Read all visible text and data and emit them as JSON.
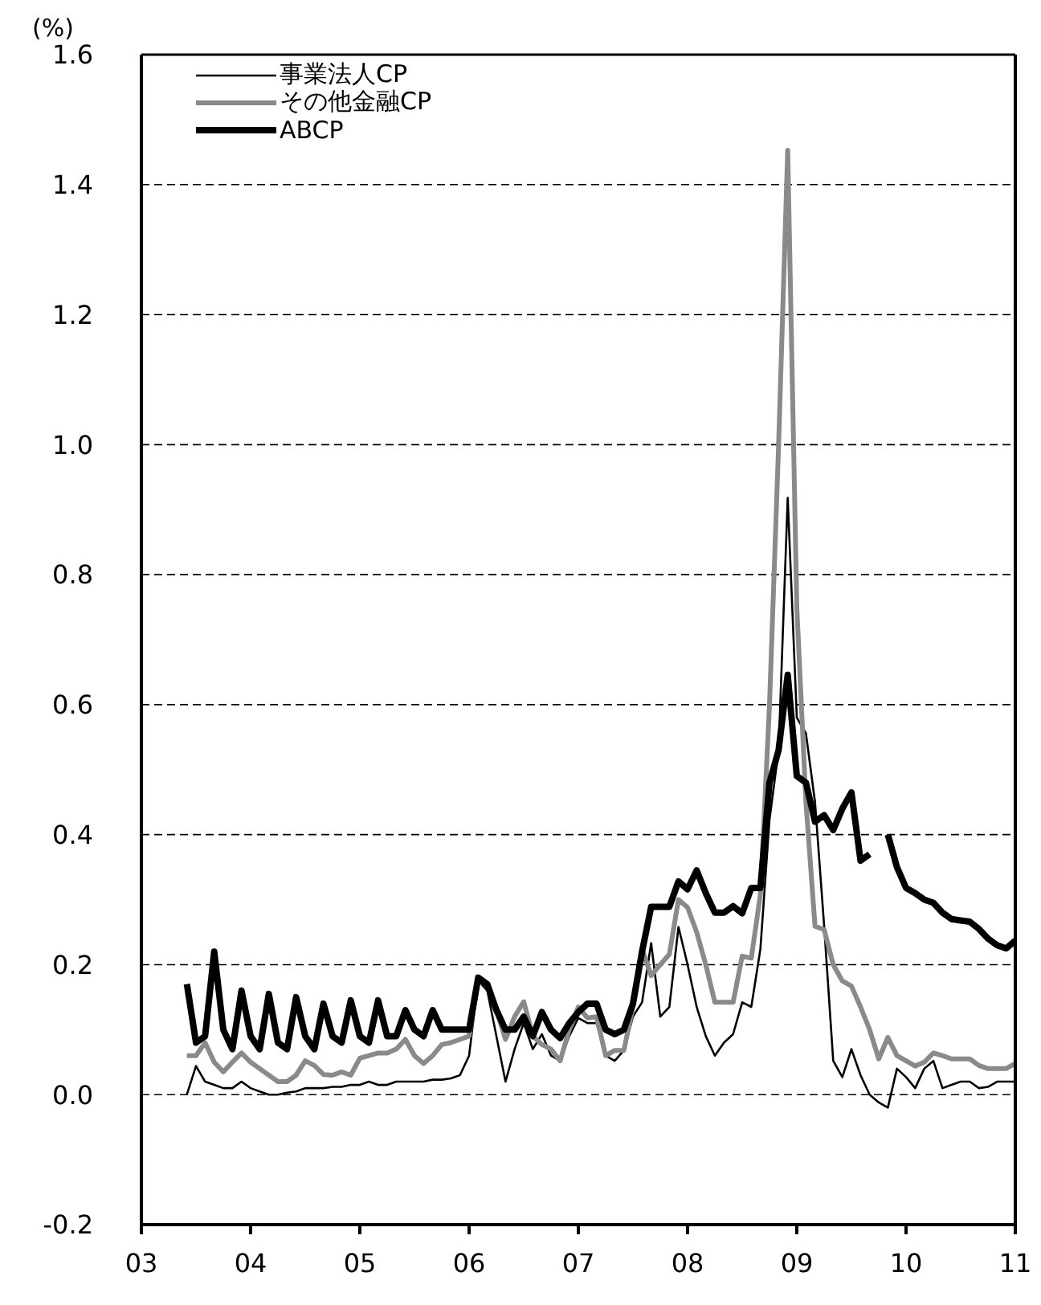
{
  "chart_data": {
    "type": "line",
    "ylabel": "(%)",
    "x": [
      "2003-06",
      "2003-07",
      "2003-08",
      "2003-09",
      "2003-10",
      "2003-11",
      "2003-12",
      "2004-01",
      "2004-02",
      "2004-03",
      "2004-04",
      "2004-05",
      "2004-06",
      "2004-07",
      "2004-08",
      "2004-09",
      "2004-10",
      "2004-11",
      "2004-12",
      "2005-01",
      "2005-02",
      "2005-03",
      "2005-04",
      "2005-05",
      "2005-06",
      "2005-07",
      "2005-08",
      "2005-09",
      "2005-10",
      "2005-11",
      "2005-12",
      "2006-01",
      "2006-02",
      "2006-03",
      "2006-04",
      "2006-05",
      "2006-06",
      "2006-07",
      "2006-08",
      "2006-09",
      "2006-10",
      "2006-11",
      "2006-12",
      "2007-01",
      "2007-02",
      "2007-03",
      "2007-04",
      "2007-05",
      "2007-06",
      "2007-07",
      "2007-08",
      "2007-09",
      "2007-10",
      "2007-11",
      "2007-12",
      "2008-01",
      "2008-02",
      "2008-03",
      "2008-04",
      "2008-05",
      "2008-06",
      "2008-07",
      "2008-08",
      "2008-09",
      "2008-10",
      "2008-11",
      "2008-12",
      "2009-01",
      "2009-02",
      "2009-03",
      "2009-04",
      "2009-05",
      "2009-06",
      "2009-07",
      "2009-08",
      "2009-09",
      "2009-10",
      "2009-11",
      "2009-12",
      "2010-01",
      "2010-02",
      "2010-03",
      "2010-04",
      "2010-05",
      "2010-06",
      "2010-07",
      "2010-08",
      "2010-09",
      "2010-10",
      "2010-11",
      "2010-12",
      "2011-01"
    ],
    "series": [
      {
        "name": "事業法人CP",
        "color": "#000000",
        "values": [
          0.0,
          0.044,
          0.02,
          0.015,
          0.01,
          0.01,
          0.02,
          0.01,
          0.005,
          0.0,
          0.0,
          0.003,
          0.005,
          0.01,
          0.01,
          0.01,
          0.012,
          0.012,
          0.015,
          0.015,
          0.02,
          0.015,
          0.015,
          0.02,
          0.02,
          0.02,
          0.02,
          0.023,
          0.023,
          0.025,
          0.03,
          0.06,
          0.176,
          0.16,
          0.09,
          0.02,
          0.07,
          0.11,
          0.07,
          0.093,
          0.06,
          0.052,
          0.09,
          0.118,
          0.11,
          0.11,
          0.06,
          0.052,
          0.068,
          0.12,
          0.142,
          0.233,
          0.12,
          0.135,
          0.258,
          0.2,
          0.135,
          0.09,
          0.06,
          0.08,
          0.093,
          0.142,
          0.135,
          0.224,
          0.423,
          0.53,
          0.918,
          0.58,
          0.556,
          0.45,
          0.26,
          0.052,
          0.027,
          0.07,
          0.03,
          0.0,
          -0.012,
          -0.02,
          0.04,
          0.027,
          0.01,
          0.04,
          0.052,
          0.01,
          0.015,
          0.02,
          0.02,
          0.01,
          0.012,
          0.02,
          0.02,
          0.02
        ]
      },
      {
        "name": "その他金融CP",
        "color": "#8a8a8a",
        "values": [
          0.06,
          0.06,
          0.08,
          0.05,
          0.035,
          0.05,
          0.064,
          0.05,
          0.04,
          0.03,
          0.02,
          0.02,
          0.03,
          0.052,
          0.045,
          0.031,
          0.03,
          0.035,
          0.03,
          0.056,
          0.06,
          0.064,
          0.064,
          0.07,
          0.085,
          0.06,
          0.048,
          0.06,
          0.077,
          0.08,
          0.085,
          0.09,
          0.176,
          0.17,
          0.13,
          0.085,
          0.12,
          0.143,
          0.09,
          0.077,
          0.07,
          0.052,
          0.1,
          0.135,
          0.118,
          0.12,
          0.06,
          0.068,
          0.068,
          0.135,
          0.224,
          0.183,
          0.2,
          0.216,
          0.3,
          0.288,
          0.25,
          0.2,
          0.142,
          0.142,
          0.142,
          0.213,
          0.21,
          0.308,
          0.6,
          1.0,
          1.453,
          0.75,
          0.45,
          0.259,
          0.254,
          0.2,
          0.175,
          0.167,
          0.135,
          0.1,
          0.055,
          0.088,
          0.06,
          0.052,
          0.044,
          0.05,
          0.064,
          0.06,
          0.055,
          0.055,
          0.055,
          0.045,
          0.04,
          0.04,
          0.04,
          0.048
        ]
      },
      {
        "name": "ABCP",
        "color": "#000000",
        "values": [
          0.17,
          0.08,
          0.09,
          0.22,
          0.1,
          0.07,
          0.16,
          0.09,
          0.07,
          0.155,
          0.08,
          0.07,
          0.15,
          0.09,
          0.07,
          0.14,
          0.09,
          0.08,
          0.145,
          0.09,
          0.08,
          0.145,
          0.09,
          0.09,
          0.13,
          0.1,
          0.09,
          0.13,
          0.1,
          0.1,
          0.1,
          0.1,
          0.18,
          0.17,
          0.13,
          0.1,
          0.1,
          0.12,
          0.09,
          0.127,
          0.1,
          0.087,
          0.11,
          0.127,
          0.14,
          0.14,
          0.1,
          0.093,
          0.1,
          0.14,
          0.22,
          0.289,
          0.289,
          0.289,
          0.328,
          0.316,
          0.345,
          0.31,
          0.28,
          0.28,
          0.29,
          0.279,
          0.318,
          0.318,
          0.48,
          0.53,
          0.646,
          0.49,
          0.48,
          0.42,
          0.43,
          0.407,
          0.44,
          0.465,
          0.36,
          0.37,
          null,
          0.4,
          0.35,
          0.318,
          0.31,
          0.3,
          0.295,
          0.28,
          0.27,
          0.268,
          0.266,
          0.255,
          0.24,
          0.23,
          0.225,
          0.237
        ]
      }
    ],
    "xlim": [
      "2003-01",
      "2011-01"
    ],
    "xticks": [
      {
        "value": "2003-01",
        "label": "03"
      },
      {
        "value": "2004-01",
        "label": "04"
      },
      {
        "value": "2005-01",
        "label": "05"
      },
      {
        "value": "2006-01",
        "label": "06"
      },
      {
        "value": "2007-01",
        "label": "07"
      },
      {
        "value": "2008-01",
        "label": "08"
      },
      {
        "value": "2009-01",
        "label": "09"
      },
      {
        "value": "2010-01",
        "label": "10"
      },
      {
        "value": "2011-01",
        "label": "11"
      }
    ],
    "ylim": [
      -0.2,
      1.6
    ],
    "yticks": [
      {
        "value": -0.2,
        "label": "-0.2"
      },
      {
        "value": 0,
        "label": "0.0"
      },
      {
        "value": 0.2,
        "label": "0.2"
      },
      {
        "value": 0.4,
        "label": "0.4"
      },
      {
        "value": 0.6,
        "label": "0.6"
      },
      {
        "value": 0.8,
        "label": "0.8"
      },
      {
        "value": 1.0,
        "label": "1.0"
      },
      {
        "value": 1.2,
        "label": "1.2"
      },
      {
        "value": 1.4,
        "label": "1.4"
      },
      {
        "value": 1.6,
        "label": "1.6"
      }
    ],
    "grid": "y",
    "legend": "top left",
    "marker": "none",
    "line_style": "solid"
  }
}
